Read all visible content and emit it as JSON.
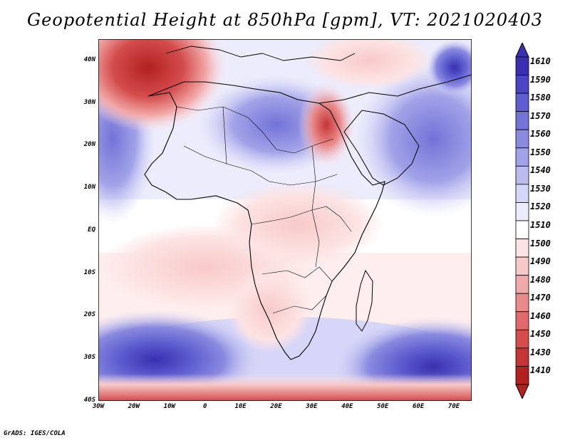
{
  "title": "Geopotential Height at 850hPa [gpm], VT: 2021020403",
  "credit": "GrADS: IGES/COLA",
  "y_ticks": [
    "40N",
    "30N",
    "20N",
    "10N",
    "EQ",
    "10S",
    "20S",
    "30S",
    "40S"
  ],
  "x_ticks": [
    "30W",
    "20W",
    "10W",
    "0",
    "10E",
    "20E",
    "30E",
    "40E",
    "50E",
    "60E",
    "70E"
  ],
  "colorbar": {
    "labels": [
      "1610",
      "1590",
      "1580",
      "1570",
      "1560",
      "1550",
      "1540",
      "1530",
      "1520",
      "1510",
      "1500",
      "1490",
      "1480",
      "1470",
      "1460",
      "1450",
      "1430",
      "1410"
    ],
    "colors": [
      "#3a2fb0",
      "#4b45c4",
      "#5e5ed0",
      "#7373d8",
      "#8a8ae0",
      "#a2a2e8",
      "#bbbbf0",
      "#d6d6f8",
      "#ececfc",
      "#ffffff",
      "#fde3e3",
      "#f8c9c9",
      "#f1aaaa",
      "#ea8b8b",
      "#e06a6a",
      "#d44c4c",
      "#c53535",
      "#b22020"
    ]
  },
  "map": {
    "region": "Africa",
    "lon_range": [
      -30,
      75
    ],
    "lat_range": [
      -40,
      45
    ]
  }
}
